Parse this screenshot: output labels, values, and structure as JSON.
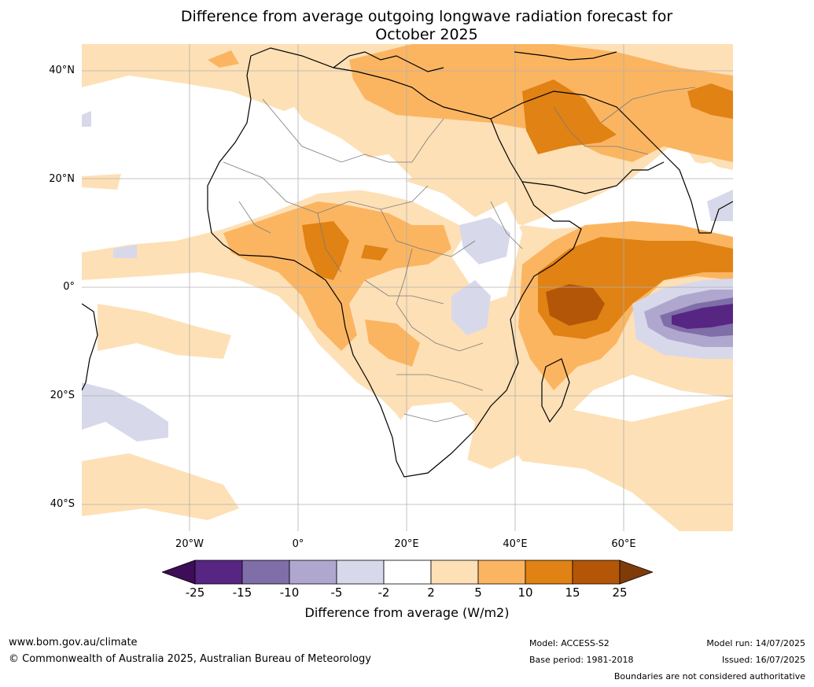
{
  "title_line1": "Difference from average outgoing longwave radiation forecast for",
  "title_line2": "October 2025",
  "lat_labels": [
    "40°N",
    "20°N",
    "0°",
    "20°S",
    "40°S"
  ],
  "lon_labels": [
    "20°W",
    "0°",
    "20°E",
    "40°E",
    "60°E"
  ],
  "colorbar": {
    "ticks": [
      "-25",
      "-15",
      "-10",
      "-5",
      "-2",
      "2",
      "5",
      "10",
      "15",
      "25"
    ],
    "label": "Difference from average (W/m2)",
    "colors": [
      "#3d0d57",
      "#572683",
      "#7f6ea8",
      "#b0a7cf",
      "#d8d8eb",
      "#ffffff",
      "#fee0b6",
      "#fbb561",
      "#e08214",
      "#b45608",
      "#7f3b08"
    ]
  },
  "footer": {
    "website": "www.bom.gov.au/climate",
    "copyright": "© Commonwealth of Australia 2025, Australian Bureau of Meteorology",
    "model": "Model: ACCESS-S2",
    "base_period": "Base period: 1981-2018",
    "model_run": "Model run: 14/07/2025",
    "issued": "Issued: 16/07/2025",
    "disclaimer": "Boundaries are not considered authoritative"
  }
}
